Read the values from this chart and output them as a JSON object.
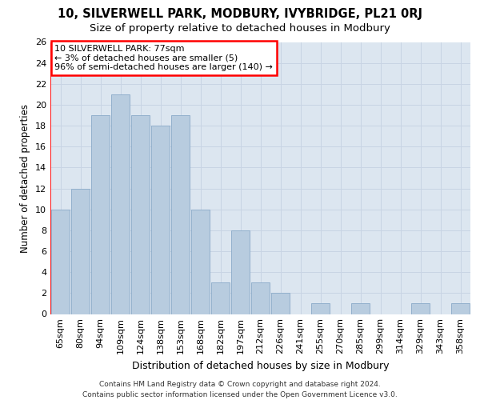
{
  "title1": "10, SILVERWELL PARK, MODBURY, IVYBRIDGE, PL21 0RJ",
  "title2": "Size of property relative to detached houses in Modbury",
  "xlabel": "Distribution of detached houses by size in Modbury",
  "ylabel": "Number of detached properties",
  "categories": [
    "65sqm",
    "80sqm",
    "94sqm",
    "109sqm",
    "124sqm",
    "138sqm",
    "153sqm",
    "168sqm",
    "182sqm",
    "197sqm",
    "212sqm",
    "226sqm",
    "241sqm",
    "255sqm",
    "270sqm",
    "285sqm",
    "299sqm",
    "314sqm",
    "329sqm",
    "343sqm",
    "358sqm"
  ],
  "values": [
    10,
    12,
    19,
    21,
    19,
    18,
    19,
    10,
    3,
    8,
    3,
    2,
    0,
    1,
    0,
    1,
    0,
    0,
    1,
    0,
    1
  ],
  "bar_color": "#b8ccdf",
  "bar_edge_color": "#8aaac8",
  "annotation_box_text": "10 SILVERWELL PARK: 77sqm\n← 3% of detached houses are smaller (5)\n96% of semi-detached houses are larger (140) →",
  "annotation_box_facecolor": "white",
  "annotation_box_edgecolor": "red",
  "red_line_x": -0.5,
  "ylim": [
    0,
    26
  ],
  "yticks": [
    0,
    2,
    4,
    6,
    8,
    10,
    12,
    14,
    16,
    18,
    20,
    22,
    24,
    26
  ],
  "grid_color": "#c8d4e4",
  "bg_color": "#dce6f0",
  "footer_line1": "Contains HM Land Registry data © Crown copyright and database right 2024.",
  "footer_line2": "Contains public sector information licensed under the Open Government Licence v3.0.",
  "title1_fontsize": 10.5,
  "title2_fontsize": 9.5,
  "xlabel_fontsize": 9,
  "ylabel_fontsize": 8.5,
  "tick_fontsize": 8,
  "annotation_fontsize": 8,
  "footer_fontsize": 6.5
}
